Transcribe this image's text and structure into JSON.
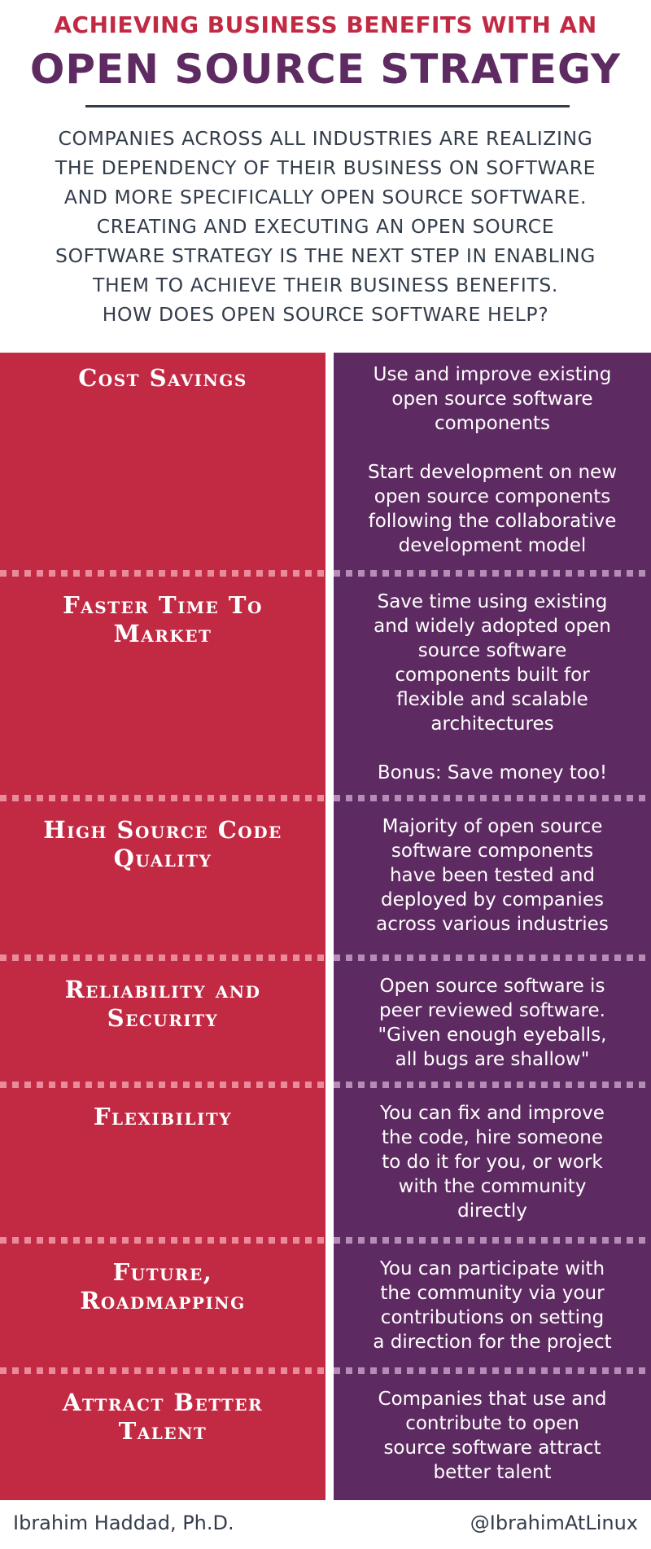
{
  "header": {
    "kicker": "ACHIEVING BUSINESS BENEFITS WITH AN",
    "headline": "OPEN SOURCE STRATEGY",
    "intro_lines": [
      "COMPANIES ACROSS ALL INDUSTRIES ARE REALIZING",
      "THE DEPENDENCY OF THEIR BUSINESS ON SOFTWARE",
      "AND MORE SPECIFICALLY OPEN SOURCE SOFTWARE.",
      "CREATING AND EXECUTING AN OPEN SOURCE",
      "SOFTWARE STRATEGY IS THE NEXT STEP IN ENABLING",
      "THEM TO ACHIEVE THEIR BUSINESS BENEFITS.",
      "HOW DOES OPEN SOURCE SOFTWARE HELP?"
    ]
  },
  "benefits": [
    {
      "category_lines": [
        "Cost Savings"
      ],
      "description_paragraphs": [
        [
          "Use and improve existing",
          "open source software",
          "components"
        ],
        [
          "Start development on new",
          "open source components",
          "following the collaborative",
          "development model"
        ]
      ]
    },
    {
      "category_lines": [
        "Faster Time To",
        "Market"
      ],
      "description_paragraphs": [
        [
          "Save time using existing",
          "and widely adopted open",
          "source software",
          "components built for",
          "flexible and scalable",
          "architectures"
        ],
        [
          "Bonus: Save money too!"
        ]
      ]
    },
    {
      "category_lines": [
        "High Source Code",
        "Quality"
      ],
      "description_paragraphs": [
        [
          "Majority of open source",
          "software components",
          "have been tested and",
          "deployed by companies",
          "across various industries"
        ]
      ]
    },
    {
      "category_lines": [
        "Reliability and",
        "Security"
      ],
      "description_paragraphs": [
        [
          "Open source software is",
          "peer reviewed software.",
          "\"Given enough eyeballs,",
          "all bugs are shallow\""
        ]
      ]
    },
    {
      "category_lines": [
        "Flexibility"
      ],
      "description_paragraphs": [
        [
          "You can fix and improve",
          "the code, hire someone",
          "to do it for you, or work",
          "with the community",
          "directly"
        ]
      ]
    },
    {
      "category_lines": [
        "Future,",
        "Roadmapping"
      ],
      "description_paragraphs": [
        [
          "You can participate with",
          "the community via your",
          "contributions on setting",
          "a direction for the project"
        ]
      ]
    },
    {
      "category_lines": [
        "Attract Better",
        "Talent"
      ],
      "description_paragraphs": [
        [
          "Companies that use and",
          "contribute to open",
          "source software attract",
          "better talent"
        ]
      ]
    }
  ],
  "footer": {
    "author": "Ibrahim Haddad, Ph.D.",
    "handle": "@IbrahimAtLinux"
  },
  "colors": {
    "kicker": "#c22a44",
    "headline": "#5e2a62",
    "left_column": "#c22a44",
    "right_column": "#5e2a62",
    "body_text": "#333d4b"
  }
}
